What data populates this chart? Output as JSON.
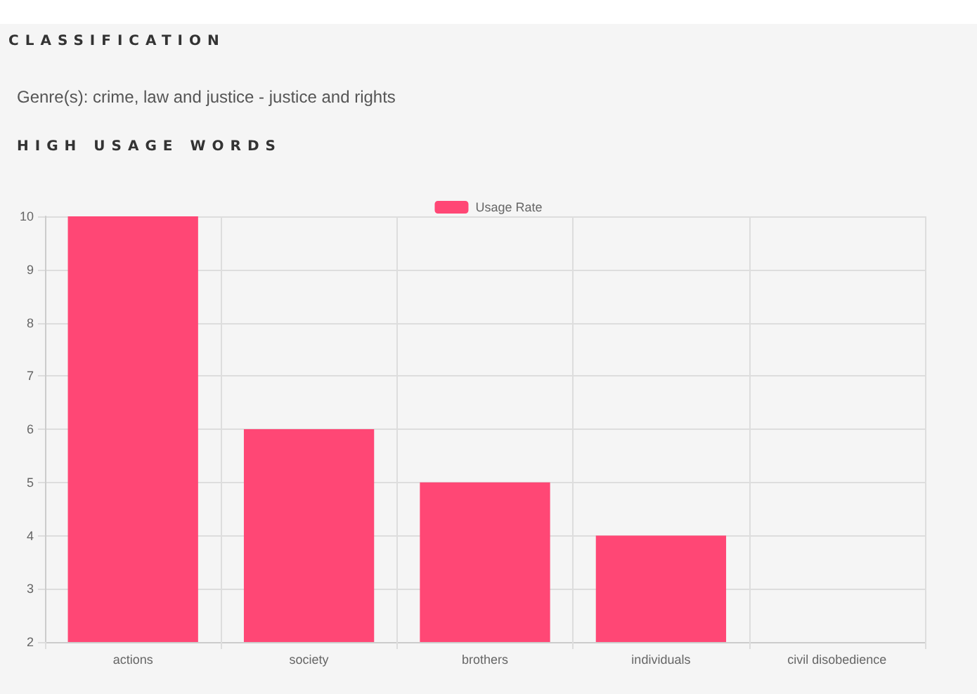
{
  "chart_data": {
    "type": "bar",
    "title": "CLASSIFICATION",
    "subtitle": "Genre(s): crime, law and justice - justice and rights",
    "annotations": [
      "HIGH USAGE WORDS"
    ],
    "categories": [
      "actions",
      "society",
      "brothers",
      "individuals",
      "civil disobedience"
    ],
    "series": [
      {
        "name": "Usage Rate",
        "color": "#ff4775",
        "values": [
          10,
          6,
          5,
          4,
          2
        ]
      }
    ],
    "ylim": [
      2,
      10
    ],
    "yticks": [
      2,
      3,
      4,
      5,
      6,
      7,
      8,
      9,
      10
    ],
    "grid": true,
    "legend": "top"
  }
}
